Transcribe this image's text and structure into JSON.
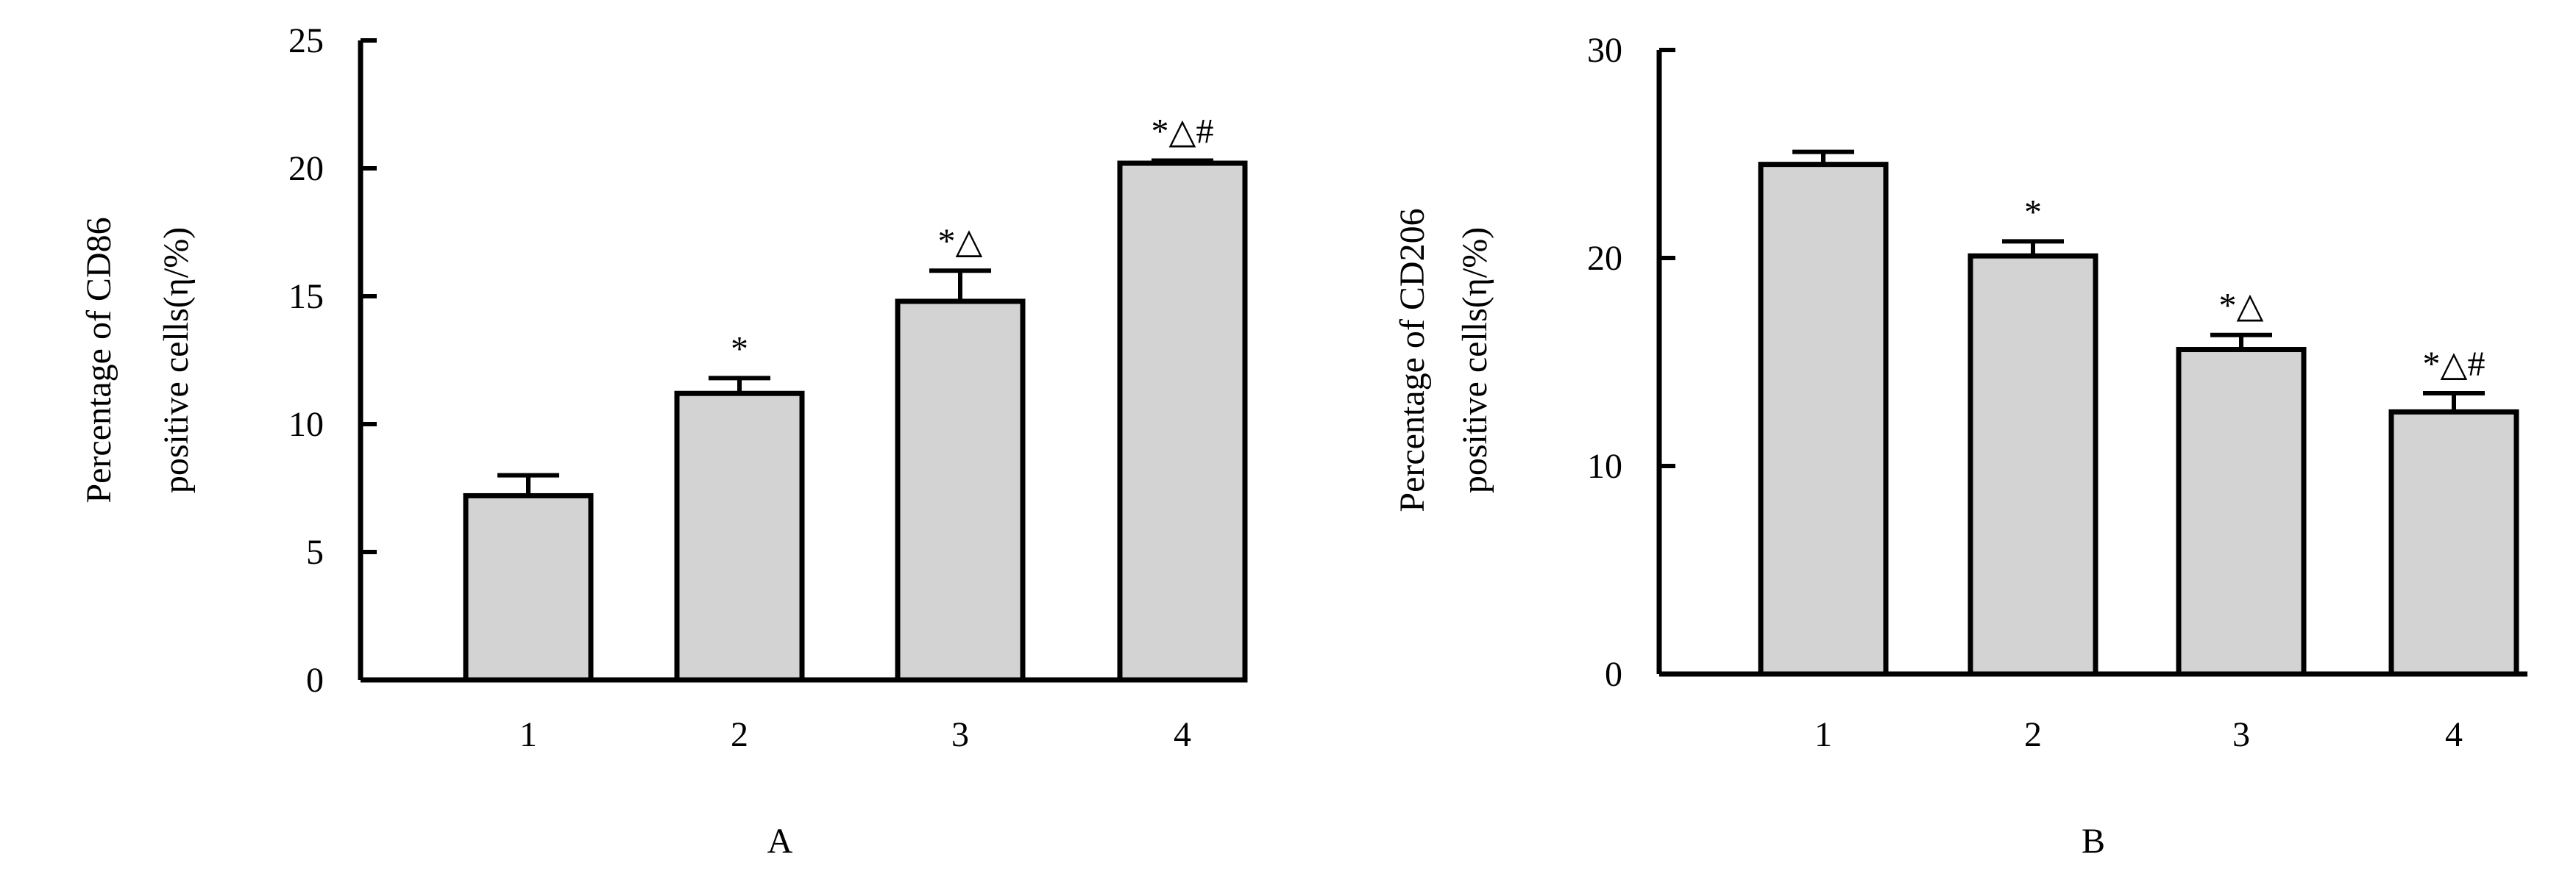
{
  "chart_data": [
    {
      "type": "bar",
      "panel_label": "A",
      "categories": [
        "1",
        "2",
        "3",
        "4"
      ],
      "values": [
        7.2,
        11.2,
        14.8,
        20.2
      ],
      "errors": [
        0.8,
        0.6,
        1.2,
        0.1
      ],
      "annotations": [
        "",
        "*",
        "*△",
        "*△#"
      ],
      "ylabel_lines": [
        "Percentage of CD86",
        "positive cells(η/%)"
      ],
      "ylim": [
        0,
        25
      ],
      "yticks": [
        0,
        5,
        10,
        15,
        20,
        25
      ],
      "bar_color": "#d3d3d3",
      "grid": false
    },
    {
      "type": "bar",
      "panel_label": "B",
      "categories": [
        "1",
        "2",
        "3",
        "4"
      ],
      "values": [
        24.5,
        20.1,
        15.6,
        12.6
      ],
      "errors": [
        0.6,
        0.7,
        0.7,
        0.9
      ],
      "annotations": [
        "",
        "*",
        "*△",
        "*△#"
      ],
      "ylabel_lines": [
        "Percentage of CD206",
        "positive cells(η/%)"
      ],
      "ylim": [
        0,
        30
      ],
      "yticks": [
        0,
        10,
        20,
        30
      ],
      "bar_color": "#d3d3d3",
      "grid": false
    }
  ]
}
